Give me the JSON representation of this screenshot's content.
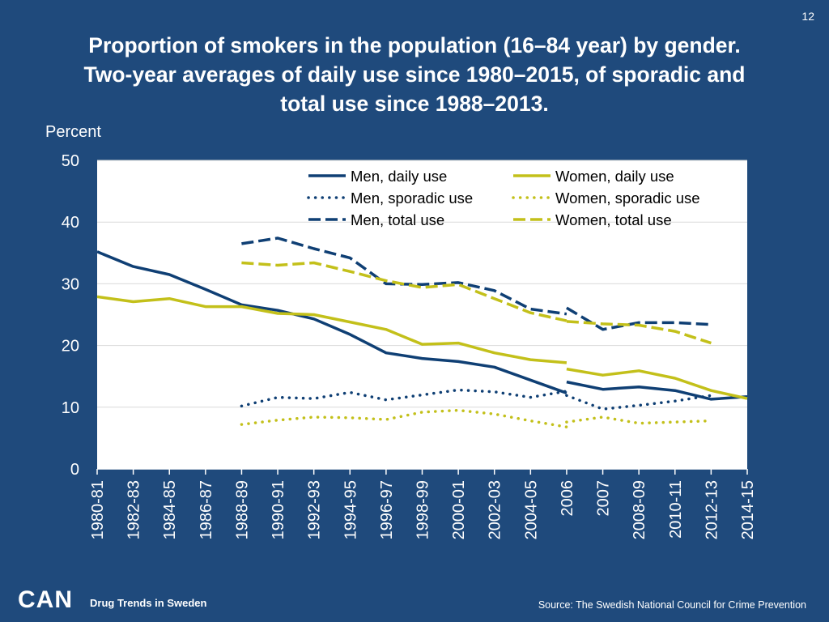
{
  "page_number": "12",
  "title_lines": [
    "Proportion of smokers in the population (16–84 year) by gender.",
    "Two-year averages of daily use since 1980–2015, of sporadic and",
    "total use since 1988–2013."
  ],
  "footer": {
    "logo": "CAN",
    "tagline": "Drug Trends in Sweden",
    "source": "Source: The Swedish National Council for Crime Prevention"
  },
  "colors": {
    "background": "#1f4a7c",
    "men": "#0f3f74",
    "women": "#c3c01a",
    "plot_bg": "#ffffff",
    "grid": "#d9d9d9"
  },
  "chart_data": {
    "type": "line",
    "title": "Proportion of smokers in the population (16–84 year) by gender.",
    "ylabel": "Percent",
    "xlabel": "",
    "ylim": [
      0,
      50
    ],
    "yticks": [
      0,
      10,
      20,
      30,
      40,
      50
    ],
    "grid": true,
    "legend_position": "top-right",
    "categories": [
      "1980-81",
      "1982-83",
      "1984-85",
      "1986-87",
      "1988-89",
      "1990-91",
      "1992-93",
      "1994-95",
      "1996-97",
      "1998-99",
      "2000-01",
      "2002-03",
      "2004-05",
      "2006",
      "2007",
      "2008-09",
      "2010-11",
      "2012-13",
      "2014-15"
    ],
    "series": [
      {
        "name": "Men, daily use",
        "gender": "men",
        "style": "solid",
        "segments": [
          [
            [
              0,
              35.2
            ],
            [
              1,
              32.8
            ],
            [
              2,
              31.5
            ],
            [
              3,
              29.1
            ],
            [
              4,
              26.6
            ],
            [
              5,
              25.7
            ],
            [
              6,
              24.3
            ],
            [
              7,
              21.8
            ],
            [
              8,
              18.8
            ],
            [
              9,
              17.9
            ],
            [
              10,
              17.4
            ],
            [
              11,
              16.5
            ],
            [
              12,
              14.4
            ],
            [
              13,
              12.3
            ]
          ],
          [
            [
              13,
              14.1
            ],
            [
              14,
              12.9
            ],
            [
              15,
              13.3
            ],
            [
              16,
              12.7
            ],
            [
              17,
              11.3
            ],
            [
              18,
              11.7
            ]
          ]
        ]
      },
      {
        "name": "Women, daily use",
        "gender": "women",
        "style": "solid",
        "segments": [
          [
            [
              0,
              27.9
            ],
            [
              1,
              27.1
            ],
            [
              2,
              27.6
            ],
            [
              3,
              26.3
            ],
            [
              4,
              26.3
            ],
            [
              5,
              25.2
            ],
            [
              6,
              25.0
            ],
            [
              7,
              23.8
            ],
            [
              8,
              22.6
            ],
            [
              9,
              20.2
            ],
            [
              10,
              20.4
            ],
            [
              11,
              18.8
            ],
            [
              12,
              17.7
            ],
            [
              13,
              17.2
            ]
          ],
          [
            [
              13,
              16.2
            ],
            [
              14,
              15.2
            ],
            [
              15,
              15.9
            ],
            [
              16,
              14.7
            ],
            [
              17,
              12.7
            ],
            [
              18,
              11.4
            ]
          ]
        ]
      },
      {
        "name": "Men, sporadic use",
        "gender": "men",
        "style": "dotted",
        "segments": [
          [
            [
              4,
              10.2
            ],
            [
              5,
              11.6
            ],
            [
              6,
              11.4
            ],
            [
              7,
              12.4
            ],
            [
              8,
              11.2
            ],
            [
              9,
              12.0
            ],
            [
              10,
              12.8
            ],
            [
              11,
              12.5
            ],
            [
              12,
              11.6
            ],
            [
              13,
              12.6
            ]
          ],
          [
            [
              13,
              11.9
            ],
            [
              14,
              9.7
            ],
            [
              15,
              10.3
            ],
            [
              16,
              11.0
            ],
            [
              17,
              11.9
            ]
          ]
        ]
      },
      {
        "name": "Women, sporadic use",
        "gender": "women",
        "style": "dotted",
        "segments": [
          [
            [
              4,
              7.2
            ],
            [
              5,
              7.9
            ],
            [
              6,
              8.4
            ],
            [
              7,
              8.3
            ],
            [
              8,
              8.0
            ],
            [
              9,
              9.2
            ],
            [
              10,
              9.5
            ],
            [
              11,
              8.9
            ],
            [
              12,
              7.8
            ],
            [
              13,
              6.8
            ]
          ],
          [
            [
              13,
              7.6
            ],
            [
              14,
              8.4
            ],
            [
              15,
              7.4
            ],
            [
              16,
              7.6
            ],
            [
              17,
              7.8
            ]
          ]
        ]
      },
      {
        "name": "Men, total use",
        "gender": "men",
        "style": "dashed",
        "segments": [
          [
            [
              4,
              36.5
            ],
            [
              5,
              37.4
            ],
            [
              6,
              35.7
            ],
            [
              7,
              34.2
            ],
            [
              8,
              30.0
            ],
            [
              9,
              29.9
            ],
            [
              10,
              30.2
            ],
            [
              11,
              28.9
            ],
            [
              12,
              25.9
            ],
            [
              13,
              25.1
            ]
          ],
          [
            [
              13,
              26.1
            ],
            [
              14,
              22.6
            ],
            [
              15,
              23.7
            ],
            [
              16,
              23.7
            ],
            [
              17,
              23.4
            ]
          ]
        ]
      },
      {
        "name": "Women, total use",
        "gender": "women",
        "style": "dashed",
        "segments": [
          [
            [
              4,
              33.4
            ],
            [
              5,
              33.0
            ],
            [
              6,
              33.4
            ],
            [
              7,
              32.0
            ],
            [
              8,
              30.5
            ],
            [
              9,
              29.4
            ],
            [
              10,
              29.9
            ],
            [
              11,
              27.6
            ],
            [
              12,
              25.3
            ],
            [
              13,
              24.0
            ]
          ],
          [
            [
              13,
              23.9
            ],
            [
              14,
              23.5
            ],
            [
              15,
              23.3
            ],
            [
              16,
              22.3
            ],
            [
              17,
              20.4
            ]
          ]
        ]
      }
    ],
    "legend": [
      {
        "series": "Men, daily use",
        "col": 0,
        "row": 0
      },
      {
        "series": "Women, daily use",
        "col": 1,
        "row": 0
      },
      {
        "series": "Men, sporadic use",
        "col": 0,
        "row": 1
      },
      {
        "series": "Women, sporadic use",
        "col": 1,
        "row": 1
      },
      {
        "series": "Men, total use",
        "col": 0,
        "row": 2
      },
      {
        "series": "Women, total use",
        "col": 1,
        "row": 2
      }
    ]
  }
}
